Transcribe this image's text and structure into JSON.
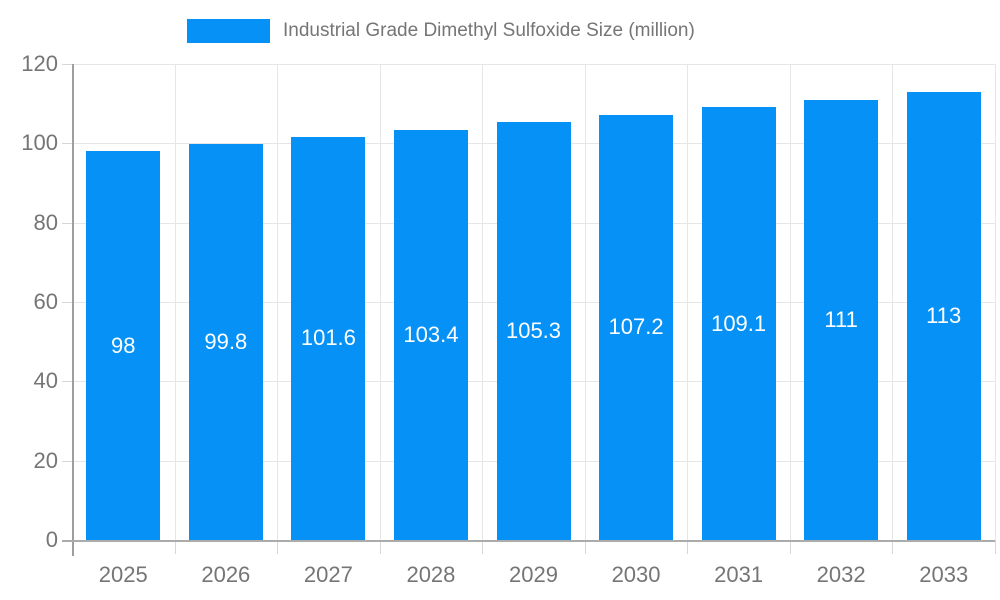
{
  "legend": {
    "label": "Industrial Grade Dimethyl Sulfoxide Size (million)"
  },
  "chart_data": {
    "type": "bar",
    "title": "Industrial Grade Dimethyl Sulfoxide Size (million)",
    "categories": [
      "2025",
      "2026",
      "2027",
      "2028",
      "2029",
      "2030",
      "2031",
      "2032",
      "2033"
    ],
    "values": [
      98,
      99.8,
      101.6,
      103.4,
      105.3,
      107.2,
      109.1,
      111,
      113
    ],
    "data_labels": [
      "98",
      "99.8",
      "101.6",
      "103.4",
      "105.3",
      "107.2",
      "109.1",
      "111",
      "113"
    ],
    "xlabel": "",
    "ylabel": "",
    "ylim": [
      0,
      120
    ],
    "yticks": [
      0,
      20,
      40,
      60,
      80,
      100,
      120
    ],
    "grid": true,
    "legend_position": "top",
    "colors": {
      "bar": "#0591f5",
      "bar_label": "#ffffff",
      "axis_text": "#757575",
      "grid_line": "#e6e6e6",
      "axis_line": "#9e9e9e"
    }
  }
}
